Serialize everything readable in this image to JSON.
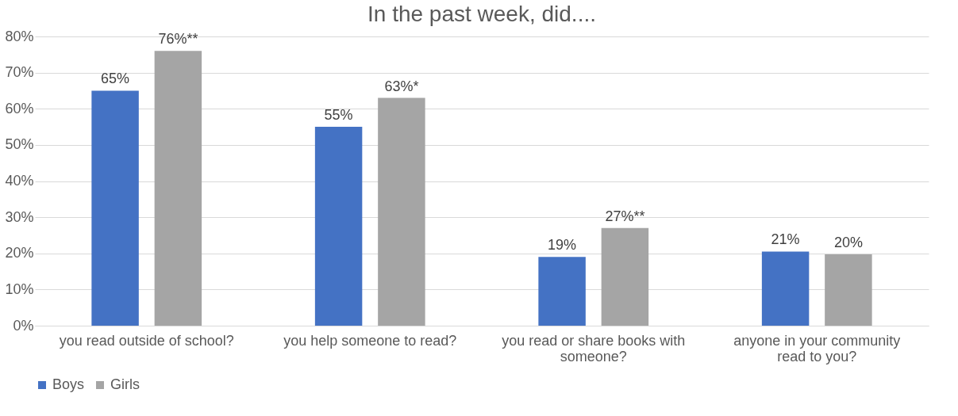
{
  "chart_data": {
    "type": "bar",
    "title": "In the past week, did....",
    "categories": [
      "you read outside of school?",
      "you help someone to read?",
      "you read or share books with someone?",
      "anyone in your community read to you?"
    ],
    "series": [
      {
        "name": "Boys",
        "color": "#4472c4",
        "values": [
          65,
          55,
          19,
          20.5
        ],
        "value_labels": [
          "65%",
          "55%",
          "19%",
          "21%"
        ]
      },
      {
        "name": "Girls",
        "color": "#a5a5a5",
        "values": [
          76,
          63,
          27,
          19.7
        ],
        "value_labels": [
          "76%**",
          "63%*",
          "27%**",
          "20%"
        ]
      }
    ],
    "ylim": [
      0,
      80
    ],
    "yticks": [
      {
        "value": 0,
        "label": "0%"
      },
      {
        "value": 10,
        "label": "10%"
      },
      {
        "value": 20,
        "label": "20%"
      },
      {
        "value": 30,
        "label": "30%"
      },
      {
        "value": 40,
        "label": "40%"
      },
      {
        "value": 50,
        "label": "50%"
      },
      {
        "value": 60,
        "label": "60%"
      },
      {
        "value": 70,
        "label": "70%"
      },
      {
        "value": 80,
        "label": "80%"
      }
    ],
    "grid": "y",
    "legend": "bottom"
  }
}
